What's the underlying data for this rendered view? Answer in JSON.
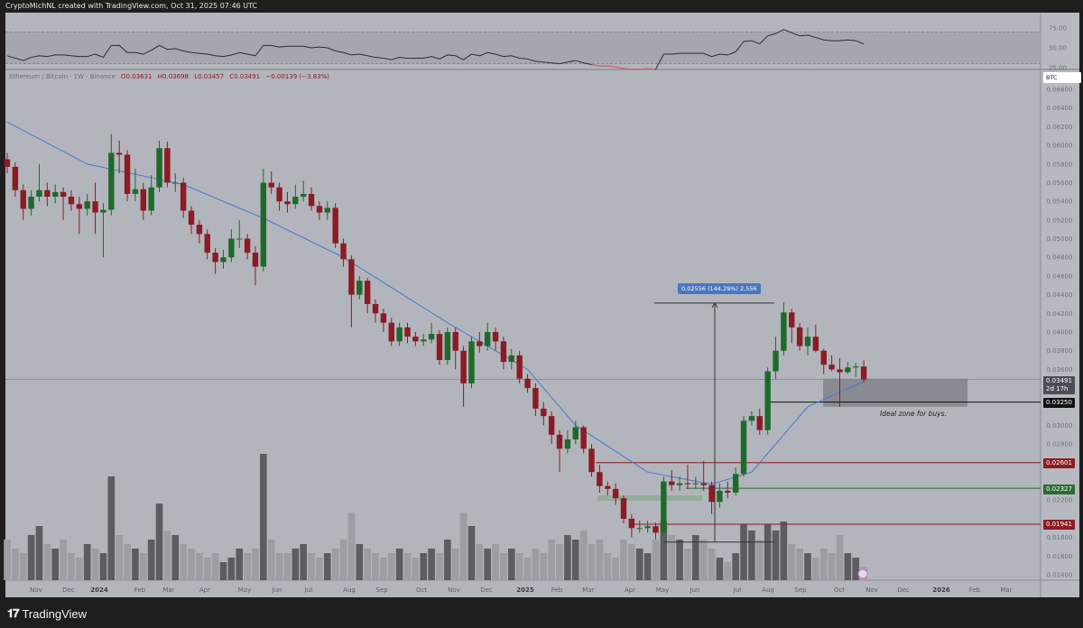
{
  "header": {
    "caption": "CryptoMichNL created with TradingView.com, Oct 31, 2025 07:46 UTC"
  },
  "legend": {
    "symbol": "Ethereum / Bitcoin · 1W · Binance",
    "open": "O0.03631",
    "high": "H0.03698",
    "low": "L0.03457",
    "close": "C0.03491",
    "change": "−0.00139 (−3.83%)"
  },
  "price_axis": {
    "currency": "BTC",
    "ticks": [
      "0.06600",
      "0.06400",
      "0.06200",
      "0.06000",
      "0.05800",
      "0.05600",
      "0.05400",
      "0.05200",
      "0.05000",
      "0.04800",
      "0.04600",
      "0.04400",
      "0.04200",
      "0.04000",
      "0.03800",
      "0.03600",
      "0.03000",
      "0.02800",
      "0.02200",
      "0.01800",
      "0.01600",
      "0.01400"
    ]
  },
  "rsi_axis": {
    "ticks": [
      "75.00",
      "50.00",
      "25.00"
    ]
  },
  "time_axis": {
    "labels": [
      "Nov",
      "Dec",
      "2024",
      "Feb",
      "Mar",
      "Apr",
      "May",
      "Jun",
      "Jul",
      "Aug",
      "Sep",
      "Oct",
      "Nov",
      "Dec",
      "2025",
      "Feb",
      "Mar",
      "Apr",
      "May",
      "Jun",
      "Jul",
      "Aug",
      "Sep",
      "Oct",
      "Nov",
      "Dec",
      "2026",
      "Feb",
      "Mar"
    ]
  },
  "badges": {
    "last_price": "0.03491",
    "countdown": "2d 17h",
    "level_1": "0.03250",
    "level_2": "0.02601",
    "level_3": "0.02327",
    "level_4": "0.01941"
  },
  "annotations": {
    "measure": "0.02556 (144.29%) 2,556",
    "zone_note": "Ideal zone for buys."
  },
  "footer": {
    "brand": "TradingView"
  },
  "colors": {
    "up": "#1f6a2a",
    "down": "#8c1b24",
    "ma": "#4a78d0",
    "bg": "#b3b5bc",
    "vol_up": "#5c5d61",
    "vol_down": "#9c9ea4",
    "level_red": "#8c1b24",
    "level_green": "#2d6b35"
  },
  "chart_data": {
    "type": "candlestick",
    "interval": "1W",
    "ylim": [
      0.014,
      0.066
    ],
    "open0": 0.0585,
    "close": [
      0.0577,
      0.0552,
      0.0532,
      0.0545,
      0.0552,
      0.0545,
      0.055,
      0.0545,
      0.0537,
      0.0532,
      0.054,
      0.0528,
      0.0531,
      0.0592,
      0.059,
      0.0548,
      0.0553,
      0.053,
      0.0555,
      0.0597,
      0.056,
      0.056,
      0.053,
      0.0515,
      0.0505,
      0.0485,
      0.0475,
      0.048,
      0.05,
      0.05,
      0.0485,
      0.047,
      0.056,
      0.0555,
      0.054,
      0.0537,
      0.0545,
      0.0548,
      0.0535,
      0.0528,
      0.0533,
      0.0495,
      0.0478,
      0.044,
      0.0455,
      0.043,
      0.042,
      0.041,
      0.039,
      0.0405,
      0.0395,
      0.039,
      0.0392,
      0.0398,
      0.037,
      0.04,
      0.038,
      0.0345,
      0.039,
      0.0385,
      0.04,
      0.039,
      0.0368,
      0.0375,
      0.035,
      0.034,
      0.0318,
      0.031,
      0.029,
      0.0275,
      0.0285,
      0.0298,
      0.0275,
      0.025,
      0.0235,
      0.0232,
      0.0222,
      0.02,
      0.019,
      0.019,
      0.0192,
      0.0185,
      0.024,
      0.0236,
      0.0238,
      0.0237,
      0.0238,
      0.0236,
      0.0218,
      0.023,
      0.0228,
      0.0248,
      0.0305,
      0.031,
      0.0295,
      0.0358,
      0.038,
      0.0421,
      0.0405,
      0.0385,
      0.0395,
      0.038,
      0.0365,
      0.036,
      0.0357,
      0.0362,
      0.03631,
      0.03491
    ],
    "high": [
      0.0592,
      0.0582,
      0.0558,
      0.0552,
      0.058,
      0.056,
      0.0558,
      0.0555,
      0.0552,
      0.0545,
      0.0548,
      0.056,
      0.0538,
      0.0612,
      0.0605,
      0.0595,
      0.0575,
      0.056,
      0.0568,
      0.0605,
      0.0604,
      0.057,
      0.0565,
      0.0535,
      0.052,
      0.051,
      0.049,
      0.0488,
      0.051,
      0.052,
      0.0505,
      0.0492,
      0.0575,
      0.0572,
      0.056,
      0.055,
      0.0558,
      0.0562,
      0.0555,
      0.054,
      0.054,
      0.0538,
      0.05,
      0.0482,
      0.046,
      0.0458,
      0.0435,
      0.0425,
      0.0415,
      0.041,
      0.041,
      0.04,
      0.0398,
      0.041,
      0.0402,
      0.0405,
      0.0405,
      0.0385,
      0.0395,
      0.04,
      0.041,
      0.0405,
      0.0395,
      0.0382,
      0.038,
      0.0355,
      0.0345,
      0.0325,
      0.0315,
      0.0295,
      0.0295,
      0.0305,
      0.03,
      0.028,
      0.0258,
      0.024,
      0.0238,
      0.0225,
      0.0205,
      0.0198,
      0.0198,
      0.0196,
      0.0245,
      0.0252,
      0.0245,
      0.0258,
      0.0245,
      0.0262,
      0.024,
      0.0238,
      0.024,
      0.0255,
      0.031,
      0.0315,
      0.0318,
      0.0362,
      0.0395,
      0.0432,
      0.0425,
      0.041,
      0.0405,
      0.0408,
      0.0382,
      0.0375,
      0.0372,
      0.0368,
      0.0367,
      0.03698
    ],
    "low": [
      0.057,
      0.0545,
      0.052,
      0.0525,
      0.054,
      0.0535,
      0.0538,
      0.052,
      0.053,
      0.0505,
      0.0525,
      0.0505,
      0.048,
      0.0525,
      0.057,
      0.054,
      0.054,
      0.052,
      0.0525,
      0.055,
      0.0555,
      0.055,
      0.0522,
      0.0505,
      0.0495,
      0.0478,
      0.0462,
      0.0468,
      0.0475,
      0.049,
      0.0478,
      0.045,
      0.0465,
      0.0548,
      0.053,
      0.0528,
      0.0532,
      0.054,
      0.053,
      0.052,
      0.052,
      0.049,
      0.047,
      0.0405,
      0.0435,
      0.042,
      0.041,
      0.04,
      0.0385,
      0.0385,
      0.0388,
      0.0385,
      0.0385,
      0.0388,
      0.0365,
      0.0365,
      0.036,
      0.032,
      0.034,
      0.0378,
      0.038,
      0.038,
      0.036,
      0.036,
      0.0345,
      0.0335,
      0.031,
      0.03,
      0.028,
      0.025,
      0.027,
      0.028,
      0.027,
      0.0245,
      0.0228,
      0.0225,
      0.0215,
      0.0195,
      0.018,
      0.0185,
      0.0185,
      0.0178,
      0.0182,
      0.023,
      0.023,
      0.0232,
      0.0232,
      0.023,
      0.0205,
      0.0212,
      0.0222,
      0.0225,
      0.0245,
      0.03,
      0.029,
      0.029,
      0.035,
      0.0375,
      0.0388,
      0.038,
      0.0375,
      0.0378,
      0.0355,
      0.0358,
      0.032,
      0.0355,
      0.0352,
      0.03457
    ],
    "volume": [
      45,
      35,
      30,
      50,
      60,
      40,
      35,
      45,
      30,
      25,
      40,
      35,
      30,
      115,
      50,
      40,
      35,
      30,
      45,
      85,
      55,
      50,
      40,
      35,
      30,
      25,
      30,
      20,
      25,
      35,
      30,
      35,
      140,
      45,
      30,
      30,
      35,
      40,
      30,
      25,
      30,
      35,
      45,
      75,
      40,
      35,
      30,
      25,
      30,
      35,
      30,
      25,
      30,
      35,
      30,
      45,
      35,
      75,
      60,
      40,
      35,
      40,
      30,
      35,
      30,
      25,
      35,
      30,
      45,
      40,
      50,
      45,
      55,
      40,
      45,
      30,
      25,
      45,
      40,
      35,
      30,
      45,
      65,
      50,
      45,
      35,
      50,
      45,
      35,
      25,
      20,
      30,
      62,
      55,
      45,
      62,
      55,
      65,
      40,
      35,
      30,
      25,
      35,
      30,
      50,
      30,
      25,
      15
    ],
    "rsi": [
      40,
      37,
      34,
      38,
      40,
      39,
      41,
      41,
      40,
      39,
      39,
      42,
      38,
      53,
      53,
      44,
      44,
      42,
      47,
      53,
      48,
      49,
      46,
      44,
      43,
      42,
      40,
      39,
      41,
      44,
      42,
      40,
      53,
      53,
      51,
      52,
      52,
      52,
      50,
      51,
      50,
      46,
      44,
      41,
      42,
      40,
      38,
      37,
      35,
      38,
      37,
      37,
      37,
      39,
      36,
      41,
      40,
      35,
      42,
      40,
      44,
      42,
      39,
      40,
      37,
      36,
      33,
      32,
      31,
      30,
      32,
      34,
      31,
      29,
      27,
      27,
      26,
      24,
      23,
      23,
      24,
      23,
      42,
      42,
      43,
      43,
      43,
      43,
      39,
      42,
      41,
      45,
      58,
      59,
      55,
      65,
      68,
      73,
      69,
      65,
      66,
      63,
      60,
      59,
      59,
      60,
      59,
      55
    ],
    "rsi_range": [
      25,
      75
    ],
    "ma_points": [
      [
        0,
        0.0625
      ],
      [
        10,
        0.058
      ],
      [
        22,
        0.0558
      ],
      [
        32,
        0.0522
      ],
      [
        42,
        0.048
      ],
      [
        55,
        0.041
      ],
      [
        65,
        0.036
      ],
      [
        71,
        0.03
      ],
      [
        80,
        0.025
      ],
      [
        88,
        0.0237
      ],
      [
        93,
        0.025
      ],
      [
        97,
        0.029
      ],
      [
        100,
        0.032
      ],
      [
        107,
        0.0347
      ]
    ],
    "levels": [
      0.03491,
      0.0325,
      0.02601,
      0.02327,
      0.01941
    ],
    "buy_zone": [
      0.032,
      0.035
    ],
    "measure_range": [
      0.0175,
      0.0431
    ]
  }
}
